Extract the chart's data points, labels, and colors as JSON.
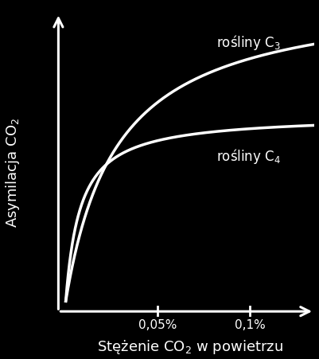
{
  "bg_color": "#000000",
  "line_color": "#ffffff",
  "axis_color": "#ffffff",
  "text_color": "#ffffff",
  "xtick_labels": [
    "0,05%",
    "0,1%"
  ],
  "xtick_positions": [
    0.05,
    0.1
  ],
  "xmax": 0.135,
  "line_width": 2.5,
  "font_size_labels": 13,
  "font_size_ticks": 11,
  "font_size_annot": 12,
  "k_c4": 0.008,
  "max_c4": 0.75,
  "k_c3": 0.028,
  "max_c3": 1.0,
  "c4_scale": 0.8
}
